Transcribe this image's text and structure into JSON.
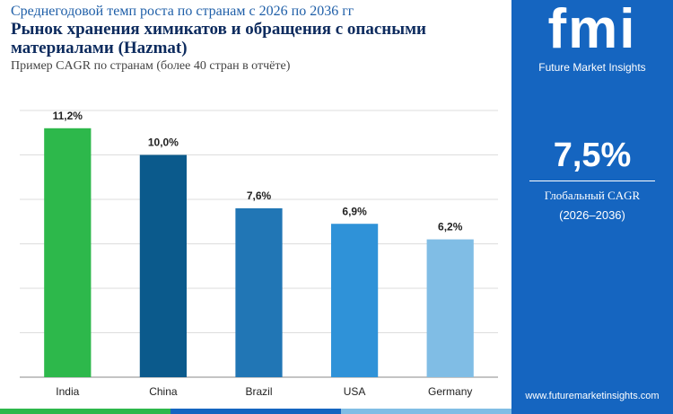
{
  "chart_data": {
    "type": "bar",
    "supertitle": "Среднегодовой темп роста по странам с 2026 по 2036 гг",
    "title": "Рынок хранения химикатов и обращения с опасными материалами (Hazmat)",
    "subtitle": "Пример CAGR по странам (более 40 стран в отчёте)",
    "categories": [
      "India",
      "China",
      "Brazil",
      "USA",
      "Germany"
    ],
    "values": [
      11.2,
      10.0,
      7.6,
      6.9,
      6.2
    ],
    "value_labels": [
      "11,2%",
      "10,0%",
      "7,6%",
      "6,9%",
      "6,2%"
    ],
    "colors": [
      "#2db84b",
      "#0b5a8c",
      "#2176b5",
      "#2f92d8",
      "#80bde5"
    ],
    "ylim": [
      0,
      12
    ],
    "yticks": [
      0,
      2,
      4,
      6,
      8,
      10,
      12
    ],
    "grid": true
  },
  "sidebar": {
    "brand": "fmi",
    "brand_name": "Future Market Insights",
    "global_value": "7,5%",
    "global_label": "Глобальный CAGR",
    "period": "(2026–2036)",
    "website": "www.futuremarketinsights.com"
  }
}
